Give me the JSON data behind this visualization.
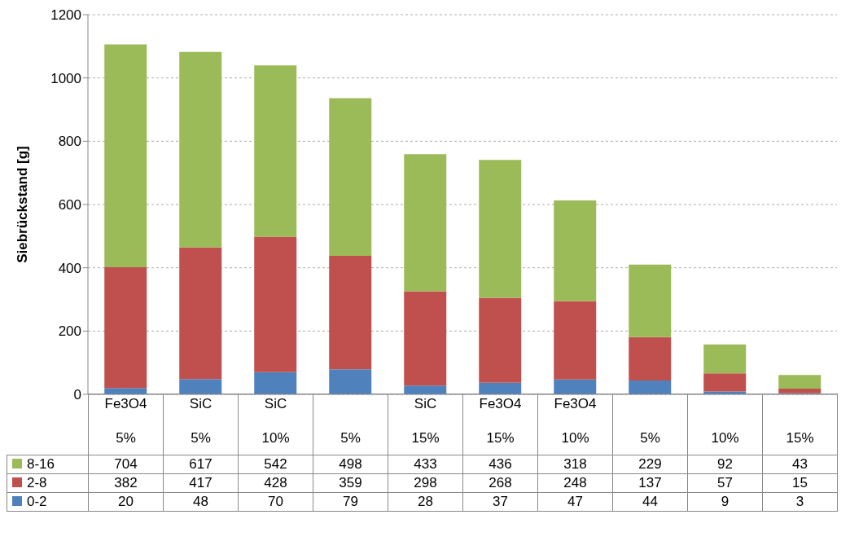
{
  "chart_data": {
    "type": "bar",
    "stacked": true,
    "ylabel": "Siebrückstand  [g]",
    "categories": [
      "Fe3O4\n5%",
      "SiC\n5%",
      "SiC\n10%",
      "\n5%",
      "SiC\n15%",
      "Fe3O4\n15%",
      "Fe3O4\n10%",
      "\n5%",
      "\n10%",
      "\n15%"
    ],
    "series": [
      {
        "name": "0-2",
        "color": "#4f81bd",
        "values": [
          20,
          48,
          70,
          79,
          28,
          37,
          47,
          44,
          9,
          3
        ]
      },
      {
        "name": "2-8",
        "color": "#c0504d",
        "values": [
          382,
          417,
          428,
          359,
          298,
          268,
          248,
          137,
          57,
          15
        ]
      },
      {
        "name": "8-16",
        "color": "#9bbb59",
        "values": [
          704,
          617,
          542,
          498,
          433,
          436,
          318,
          229,
          92,
          43
        ]
      }
    ],
    "ylim": [
      0,
      1200
    ],
    "yticks": [
      0,
      200,
      400,
      600,
      800,
      1000,
      1200
    ],
    "grid": "y",
    "legend": "bottom",
    "data_labels": true
  }
}
